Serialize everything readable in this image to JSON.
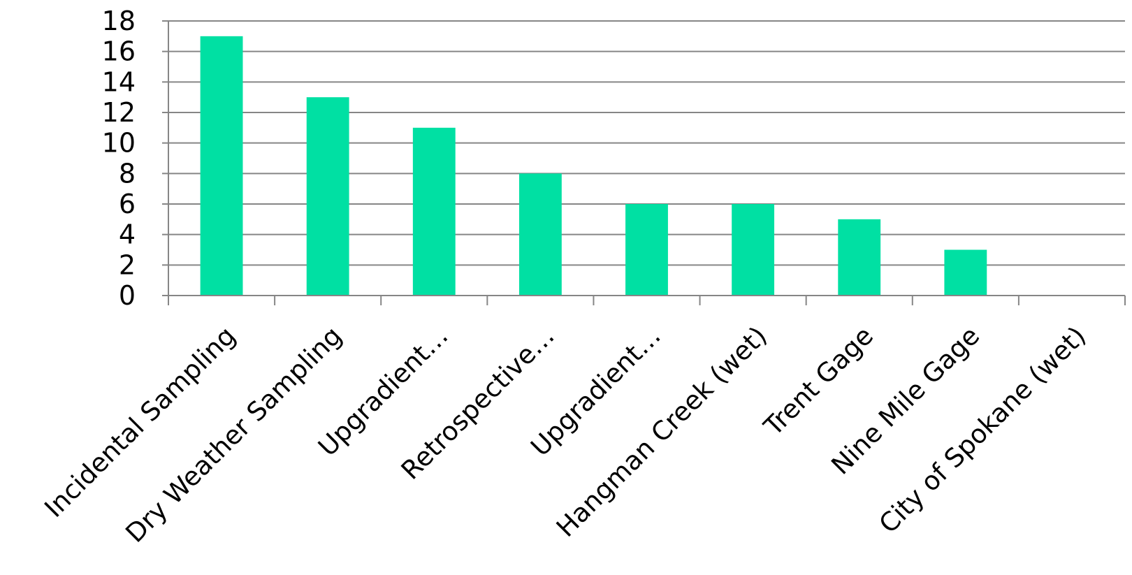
{
  "chart_data": {
    "type": "bar",
    "title": "",
    "xlabel": "",
    "ylabel": "",
    "categories": [
      "Incidental Sampling",
      "Dry Weather Sampling",
      "Upgradient…",
      "Retrospective…",
      "Upgradient…",
      "Hangman Creek (wet)",
      "Trent Gage",
      "Nine Mile Gage",
      "City of Spokane (wet)"
    ],
    "values": [
      17,
      13,
      11,
      8,
      6,
      6,
      5,
      3,
      0
    ],
    "ylim": [
      0,
      18
    ],
    "yticks": [
      0,
      2,
      4,
      6,
      8,
      10,
      12,
      14,
      16,
      18
    ],
    "grid": true,
    "legend": "none",
    "bar_color": "#00E0A3",
    "grid_color": "#868686",
    "axis_color": "#868686"
  }
}
